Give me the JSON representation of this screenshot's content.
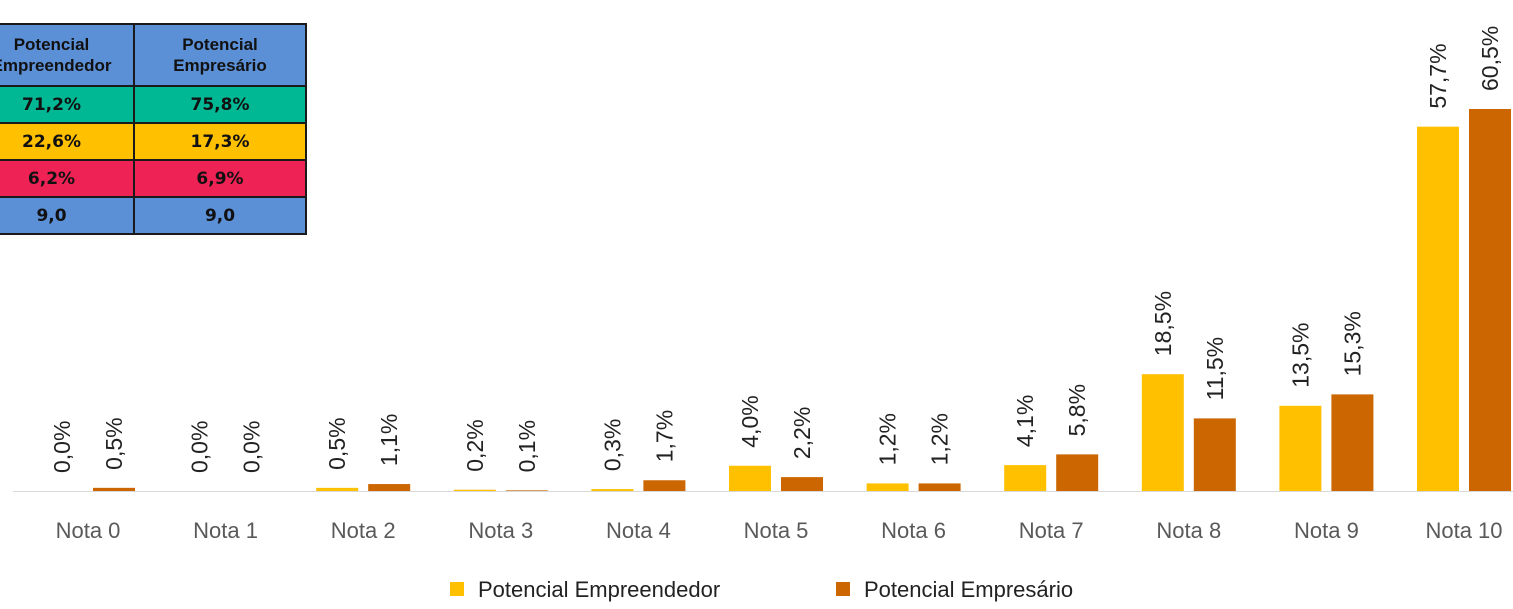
{
  "summary_table": {
    "headers": [
      "Potencial\nEmpreendedor",
      "Potencial\nEmpresário"
    ],
    "rows": [
      {
        "color": "#00b894",
        "values": [
          "71,2%",
          "75,8%"
        ]
      },
      {
        "color": "#ffc000",
        "values": [
          "22,6%",
          "17,3%"
        ]
      },
      {
        "color": "#ee2255",
        "values": [
          "6,2%",
          "6,9%"
        ]
      },
      {
        "color": "#5b8fd6",
        "values": [
          "9,0",
          "9,0"
        ]
      }
    ]
  },
  "chart_data": {
    "type": "bar",
    "categories": [
      "Nota 0",
      "Nota 1",
      "Nota 2",
      "Nota 3",
      "Nota 4",
      "Nota 5",
      "Nota 6",
      "Nota 7",
      "Nota 8",
      "Nota 9",
      "Nota 10"
    ],
    "series": [
      {
        "name": "Potencial Empreendedor",
        "color": "#ffc000",
        "values": [
          0.0,
          0.0,
          0.5,
          0.2,
          0.3,
          4.0,
          1.2,
          4.1,
          18.5,
          13.5,
          57.7
        ],
        "labels": [
          "0,0%",
          "0,0%",
          "0,5%",
          "0,2%",
          "0,3%",
          "4,0%",
          "1,2%",
          "4,1%",
          "18,5%",
          "13,5%",
          "57,7%"
        ]
      },
      {
        "name": "Potencial Empresário",
        "color": "#cc6600",
        "values": [
          0.5,
          0.0,
          1.1,
          0.1,
          1.7,
          2.2,
          1.2,
          5.8,
          11.5,
          15.3,
          60.5
        ],
        "labels": [
          "0,5%",
          "0,0%",
          "1,1%",
          "0,1%",
          "1,7%",
          "2,2%",
          "1,2%",
          "5,8%",
          "11,5%",
          "15,3%",
          "60,5%"
        ]
      }
    ],
    "ylim": [
      0,
      60.5
    ],
    "legend": "bottom",
    "grid": false
  }
}
